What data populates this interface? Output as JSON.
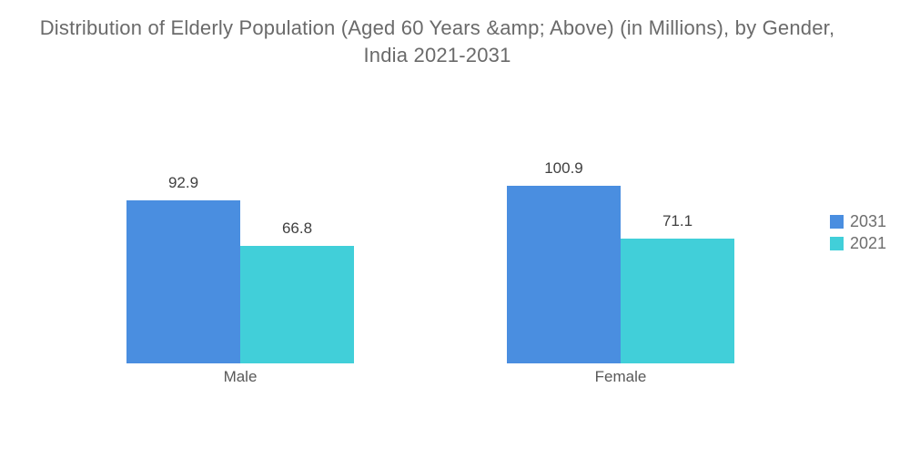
{
  "title": "Distribution of Elderly Population (Aged 60 Years &amp; Above) (in Millions), by Gender, India 2021-2031",
  "chart_data": {
    "type": "bar",
    "grouped": true,
    "title": "Distribution of Elderly Population (Aged 60 Years &amp; Above) (in Millions), by Gender, India 2021-2031",
    "categories": [
      "Male",
      "Female"
    ],
    "series": [
      {
        "name": "2031",
        "color": "#4a8ee0",
        "values": [
          92.9,
          100.9
        ]
      },
      {
        "name": "2021",
        "color": "#41cfd9",
        "values": [
          66.8,
          71.1
        ]
      }
    ],
    "xlabel": "",
    "ylabel": "",
    "ylim": [
      0,
      110
    ],
    "gridlines": false,
    "axes_visible": false,
    "value_labels_shown": true,
    "legend_position": "right"
  },
  "colors": {
    "background": "#ffffff",
    "title_text": "#6a6a6a",
    "value_label_text": "#404040",
    "category_label_text": "#595959",
    "legend_text": "#6e6e6e",
    "series_2031": "#4a8ee0",
    "series_2021": "#41cfd9"
  }
}
